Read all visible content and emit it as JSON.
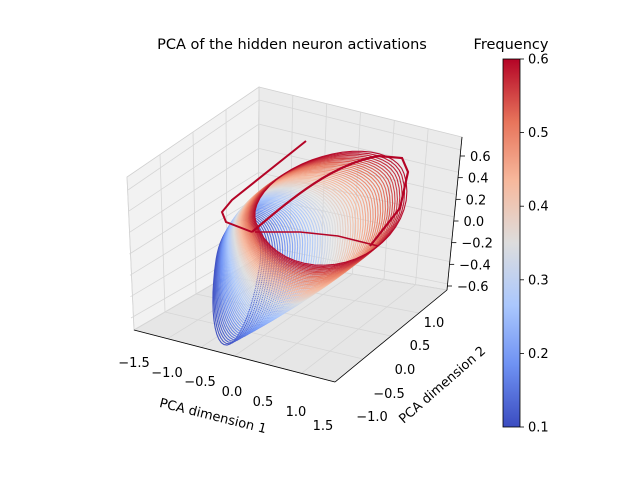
{
  "chart_data": {
    "type": "line",
    "projection": "3d",
    "title": "PCA of the hidden neuron activations",
    "xlabel": "PCA dimension 1",
    "ylabel": "PCA dimension 2",
    "zlabel": "",
    "xlim": [
      -1.6,
      1.6
    ],
    "ylim": [
      -1.2,
      1.2
    ],
    "zlim": [
      -0.7,
      0.7
    ],
    "xticks": [
      "−1.5",
      "−1.0",
      "−0.5",
      "0.0",
      "0.5",
      "1.0",
      "1.5"
    ],
    "yticks": [
      "−1.0",
      "−0.5",
      "0.0",
      "0.5",
      "1.0"
    ],
    "zticks": [
      "−0.6",
      "−0.4",
      "−0.2",
      "0.0",
      "0.2",
      "0.4",
      "0.6"
    ],
    "grid": true,
    "colormap": "coolwarm",
    "colorbar": {
      "label": "Frequency",
      "min": 0.1,
      "max": 0.6,
      "ticks": [
        "0.1",
        "0.2",
        "0.3",
        "0.4",
        "0.5",
        "0.6"
      ],
      "colors": [
        "#3b4cc0",
        "#6f92f3",
        "#aac7fd",
        "#dddddd",
        "#f7b89c",
        "#e7745b",
        "#b40426"
      ]
    },
    "series_description": "Family of closed trajectories, one per input frequency; low-frequency loops shrink to a small cusp near PC1≈-1.4, high-frequency loops form a large ring.",
    "frequency_range": [
      0.1,
      0.6
    ]
  }
}
